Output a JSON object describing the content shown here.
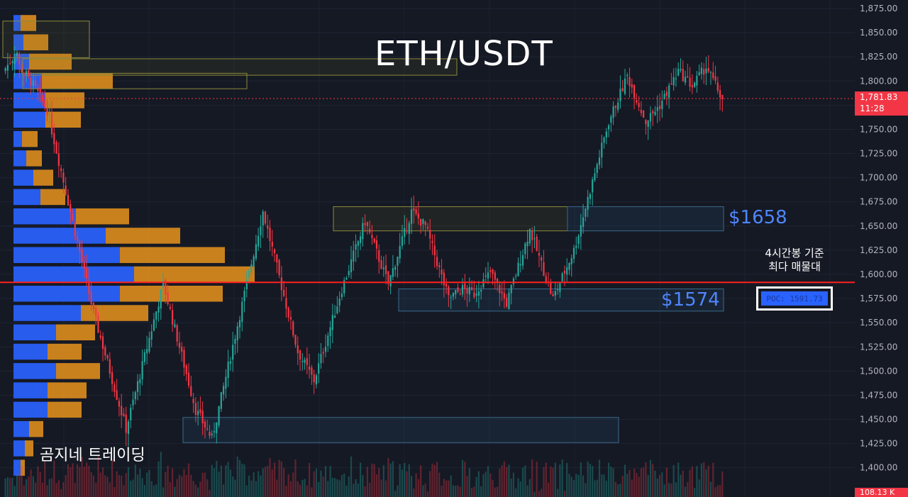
{
  "title": "ETH/USDT",
  "levels": {
    "upper": "$1658",
    "lower": "$1574"
  },
  "annotation": {
    "line1": "4시간봉 기준",
    "line2": "최다 매물대"
  },
  "poc_label": "POC: 1591.73",
  "brand": "곰지네 트레이딩",
  "last_price": {
    "value": "1,781.83",
    "countdown": "11:28"
  },
  "volume_label": "108.13 K",
  "colors": {
    "up": "#26a69a",
    "down": "#f23645",
    "vp_up": "#2962ff",
    "vp_down": "#d98a1e",
    "poc_line": "#ff2020",
    "background": "#151924"
  },
  "chart_data": {
    "type": "candlestick",
    "symbol": "ETH/USDT",
    "timeframe_note": "4시간봉",
    "y_axis": {
      "ticks": [
        "1,875.00",
        "1,850.00",
        "1,825.00",
        "1,800.00",
        "1,775.00",
        "1,750.00",
        "1,725.00",
        "1,700.00",
        "1,675.00",
        "1,650.00",
        "1,625.00",
        "1,600.00",
        "1,575.00",
        "1,550.00",
        "1,525.00",
        "1,500.00",
        "1,475.00",
        "1,450.00",
        "1,425.00",
        "1,400.00"
      ],
      "range": [
        1385,
        1880
      ]
    },
    "current_price": 1781.83,
    "poc": 1591.73,
    "zones": [
      {
        "low": 1645,
        "high": 1670
      },
      {
        "low": 1562,
        "high": 1585
      },
      {
        "low": 1426,
        "high": 1452
      },
      {
        "low": 1806,
        "high": 1823
      },
      {
        "low": 1824,
        "high": 1862
      }
    ],
    "segments": [
      [
        1810,
        1830
      ],
      [
        1818,
        1800
      ],
      [
        1800,
        1770
      ],
      [
        1770,
        1560
      ],
      [
        1560,
        1440
      ],
      [
        1440,
        1590
      ],
      [
        1590,
        1460
      ],
      [
        1460,
        1430
      ],
      [
        1430,
        1665
      ],
      [
        1665,
        1520
      ],
      [
        1520,
        1490
      ],
      [
        1490,
        1585
      ],
      [
        1585,
        1655
      ],
      [
        1655,
        1590
      ],
      [
        1590,
        1665
      ],
      [
        1665,
        1650
      ],
      [
        1650,
        1575
      ],
      [
        1575,
        1585
      ],
      [
        1585,
        1580
      ],
      [
        1580,
        1602
      ],
      [
        1602,
        1570
      ],
      [
        1570,
        1646
      ],
      [
        1646,
        1575
      ],
      [
        1575,
        1625
      ],
      [
        1625,
        1758
      ],
      [
        1758,
        1805
      ],
      [
        1805,
        1758
      ],
      [
        1758,
        1775
      ],
      [
        1775,
        1810
      ],
      [
        1810,
        1795
      ],
      [
        1795,
        1815
      ],
      [
        1815,
        1781
      ]
    ],
    "volume_profile": [
      {
        "price": 1860,
        "buy": 10,
        "sell": 22
      },
      {
        "price": 1840,
        "buy": 14,
        "sell": 35
      },
      {
        "price": 1820,
        "buy": 22,
        "sell": 60
      },
      {
        "price": 1800,
        "buy": 40,
        "sell": 100
      },
      {
        "price": 1780,
        "buy": 45,
        "sell": 55
      },
      {
        "price": 1760,
        "buy": 45,
        "sell": 50
      },
      {
        "price": 1740,
        "buy": 12,
        "sell": 22
      },
      {
        "price": 1720,
        "buy": 18,
        "sell": 22
      },
      {
        "price": 1700,
        "buy": 28,
        "sell": 28
      },
      {
        "price": 1680,
        "buy": 38,
        "sell": 35
      },
      {
        "price": 1660,
        "buy": 88,
        "sell": 75
      },
      {
        "price": 1640,
        "buy": 130,
        "sell": 105
      },
      {
        "price": 1620,
        "buy": 150,
        "sell": 148
      },
      {
        "price": 1600,
        "buy": 170,
        "sell": 170
      },
      {
        "price": 1580,
        "buy": 150,
        "sell": 145
      },
      {
        "price": 1560,
        "buy": 95,
        "sell": 95
      },
      {
        "price": 1540,
        "buy": 60,
        "sell": 55
      },
      {
        "price": 1520,
        "buy": 48,
        "sell": 48
      },
      {
        "price": 1500,
        "buy": 60,
        "sell": 62
      },
      {
        "price": 1480,
        "buy": 48,
        "sell": 55
      },
      {
        "price": 1460,
        "buy": 48,
        "sell": 48
      },
      {
        "price": 1440,
        "buy": 22,
        "sell": 20
      },
      {
        "price": 1420,
        "buy": 16,
        "sell": 12
      },
      {
        "price": 1400,
        "buy": 10,
        "sell": 6
      }
    ]
  }
}
